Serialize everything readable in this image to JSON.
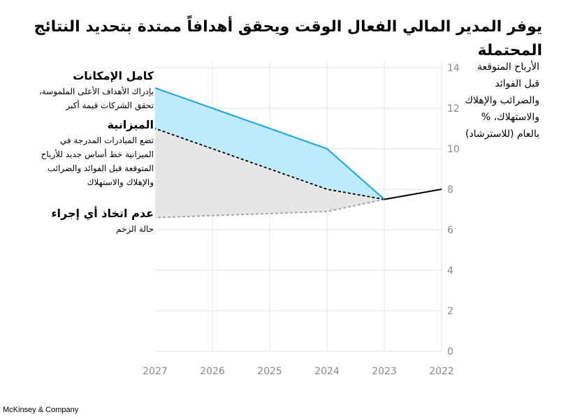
{
  "title": "يوفر المدير المالي الفعال الوقت ويحقق أهدافاً ممتدة بتحديد النتائج المحتملة",
  "y_axis_label_lines": [
    "الأرباح المتوقعة",
    "قبل الفوائد",
    "والضرائب والإهلاك",
    "والاستهلاك، %",
    "بالعام (للاسترشاد)"
  ],
  "annotations": {
    "full_potential": {
      "title": "كامل الإمكانات",
      "lines": [
        "بإدراك الأهداف الأعلى الملموسة،",
        "تحقق الشركات قيمة أكبر"
      ]
    },
    "budget": {
      "title": "الميزانية",
      "lines": [
        "تضع المبادرات المدرجة في",
        "الميزانية خط أساس جديد للأرباح",
        "المتوقعة قبل الفوائد والضرائب",
        "والإهلاك والاستهلاك"
      ]
    },
    "no_action": {
      "title": "عدم اتخاذ أي إجراء",
      "lines": [
        "حالة الزخم"
      ]
    }
  },
  "source": "McKinsey & Company",
  "colors": {
    "full_line": "#1AA3E2",
    "full_fill": "#BDEBFB",
    "budget_fill": "#E6E6E6",
    "no_action_line": "#A6A6A6",
    "grid": "#E3E3E3",
    "axis_text": "#8A8A8A"
  },
  "chart_data": {
    "type": "line",
    "x": [
      2022,
      2023,
      2024,
      2025,
      2026,
      2027
    ],
    "x_direction": "right-to-left",
    "ylim": [
      0,
      14
    ],
    "yticks": [
      0,
      2,
      4,
      6,
      8,
      10,
      12,
      14
    ],
    "grid": true,
    "series": [
      {
        "name": "historical",
        "style": "solid",
        "points": [
          [
            2022,
            8.0
          ],
          [
            2023,
            7.5
          ]
        ]
      },
      {
        "name": "كامل الإمكانات",
        "style": "solid",
        "points": [
          [
            2023,
            7.5
          ],
          [
            2024,
            10.0
          ],
          [
            2027,
            13.0
          ]
        ]
      },
      {
        "name": "الميزانية",
        "style": "dashed",
        "points": [
          [
            2023,
            7.5
          ],
          [
            2024,
            8.0
          ],
          [
            2027,
            11.0
          ]
        ]
      },
      {
        "name": "عدم اتخاذ أي إجراء",
        "style": "dashed",
        "points": [
          [
            2023,
            7.5
          ],
          [
            2024,
            6.9
          ],
          [
            2027,
            6.6
          ]
        ]
      }
    ]
  }
}
